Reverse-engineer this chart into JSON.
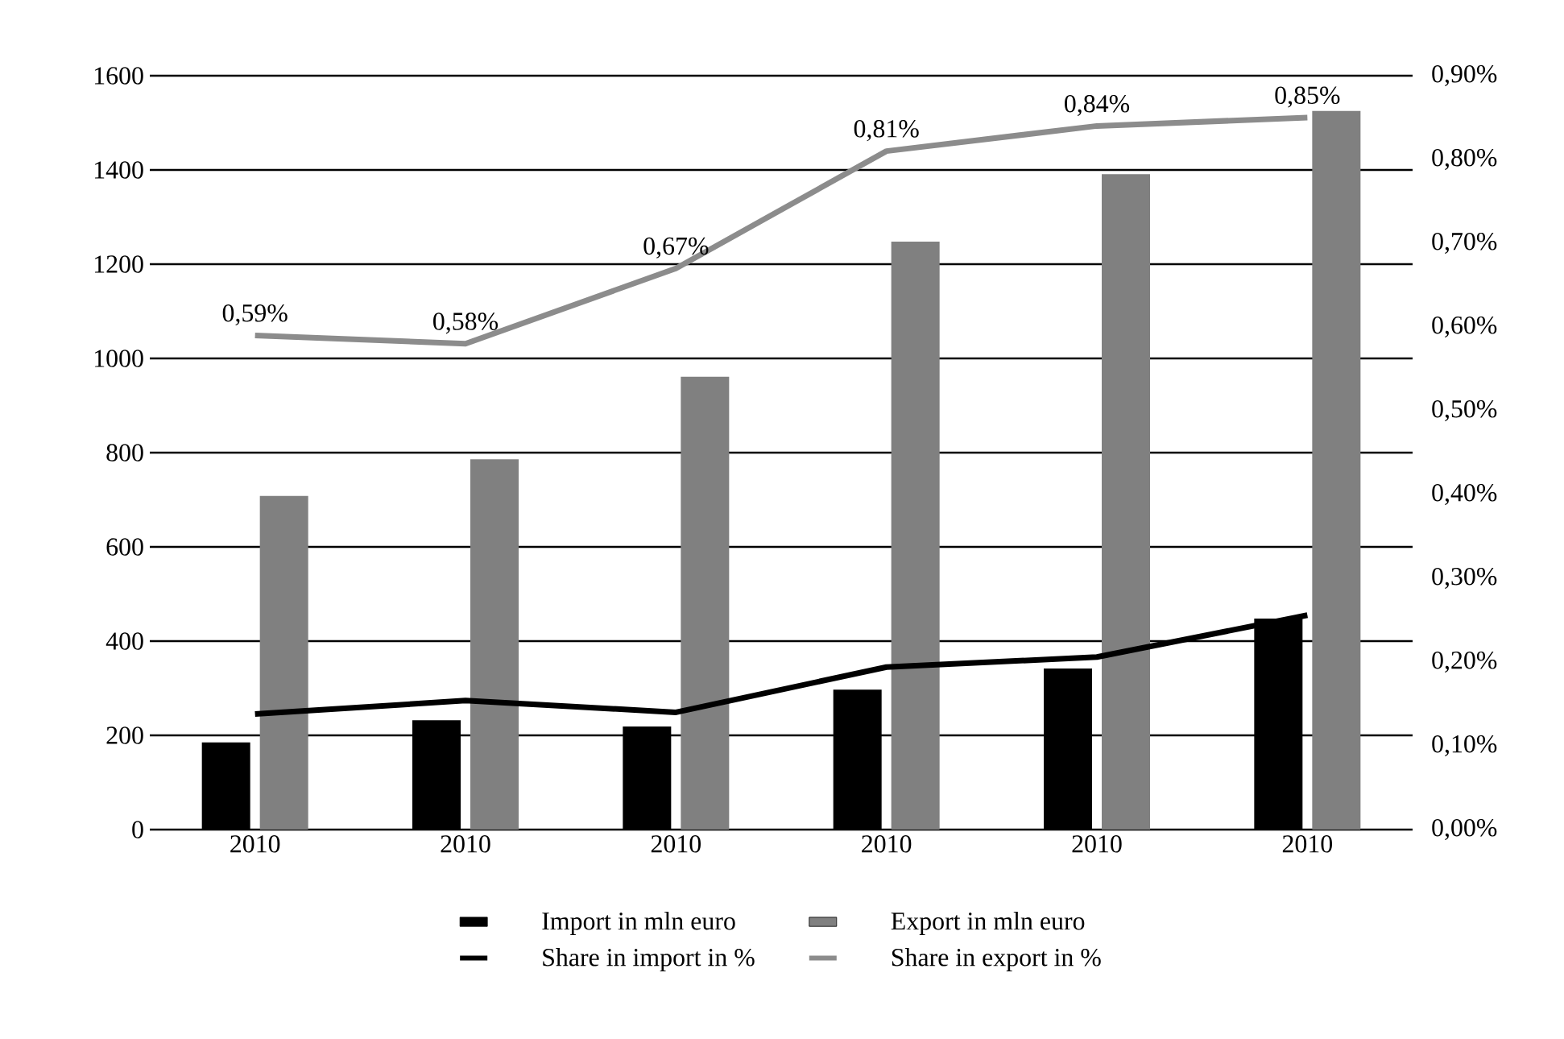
{
  "chart_data": {
    "type": "bar",
    "categories": [
      "2010",
      "2010",
      "2010",
      "2010",
      "2010",
      "2010"
    ],
    "ylim": [
      0,
      1600
    ],
    "yticks": [
      0,
      200,
      400,
      600,
      800,
      1000,
      1200,
      1400,
      1600
    ],
    "y2lim": [
      0,
      0.9
    ],
    "y2ticks": [
      {
        "value": 0,
        "label": "0,00%"
      },
      {
        "value": 0.1,
        "label": "0,10%"
      },
      {
        "value": 0.2,
        "label": "0,20%"
      },
      {
        "value": 0.3,
        "label": "0,30%"
      },
      {
        "value": 0.4,
        "label": "0,40%"
      },
      {
        "value": 0.5,
        "label": "0,50%"
      },
      {
        "value": 0.6,
        "label": "0,60%"
      },
      {
        "value": 0.7,
        "label": "0,70%"
      },
      {
        "value": 0.8,
        "label": "0,80%"
      },
      {
        "value": 0.9,
        "label": "0,90%"
      }
    ],
    "grid": "y",
    "legend": "bottom",
    "series": [
      {
        "name": "Import in mln euro",
        "color": "#000000",
        "values": [
          185,
          232,
          219,
          297,
          342,
          448
        ]
      },
      {
        "name": "Export in mln euro",
        "color": "#808080",
        "values": [
          708,
          786,
          961,
          1248,
          1391,
          1525
        ]
      },
      {
        "name": "Share in import in %",
        "type": "line",
        "axis": "y2",
        "color": "#000000",
        "values": [
          0.138,
          0.154,
          0.14,
          0.194,
          0.206,
          0.256
        ]
      },
      {
        "name": "Share in export in %",
        "type": "line",
        "axis": "y2",
        "color": "#8c8c8c",
        "values": [
          0.59,
          0.58,
          0.67,
          0.81,
          0.84,
          0.85
        ],
        "value_labels": [
          "0,59%",
          "0,58%",
          "0,67%",
          "0,81%",
          "0,84%",
          "0,85%"
        ]
      }
    ]
  }
}
